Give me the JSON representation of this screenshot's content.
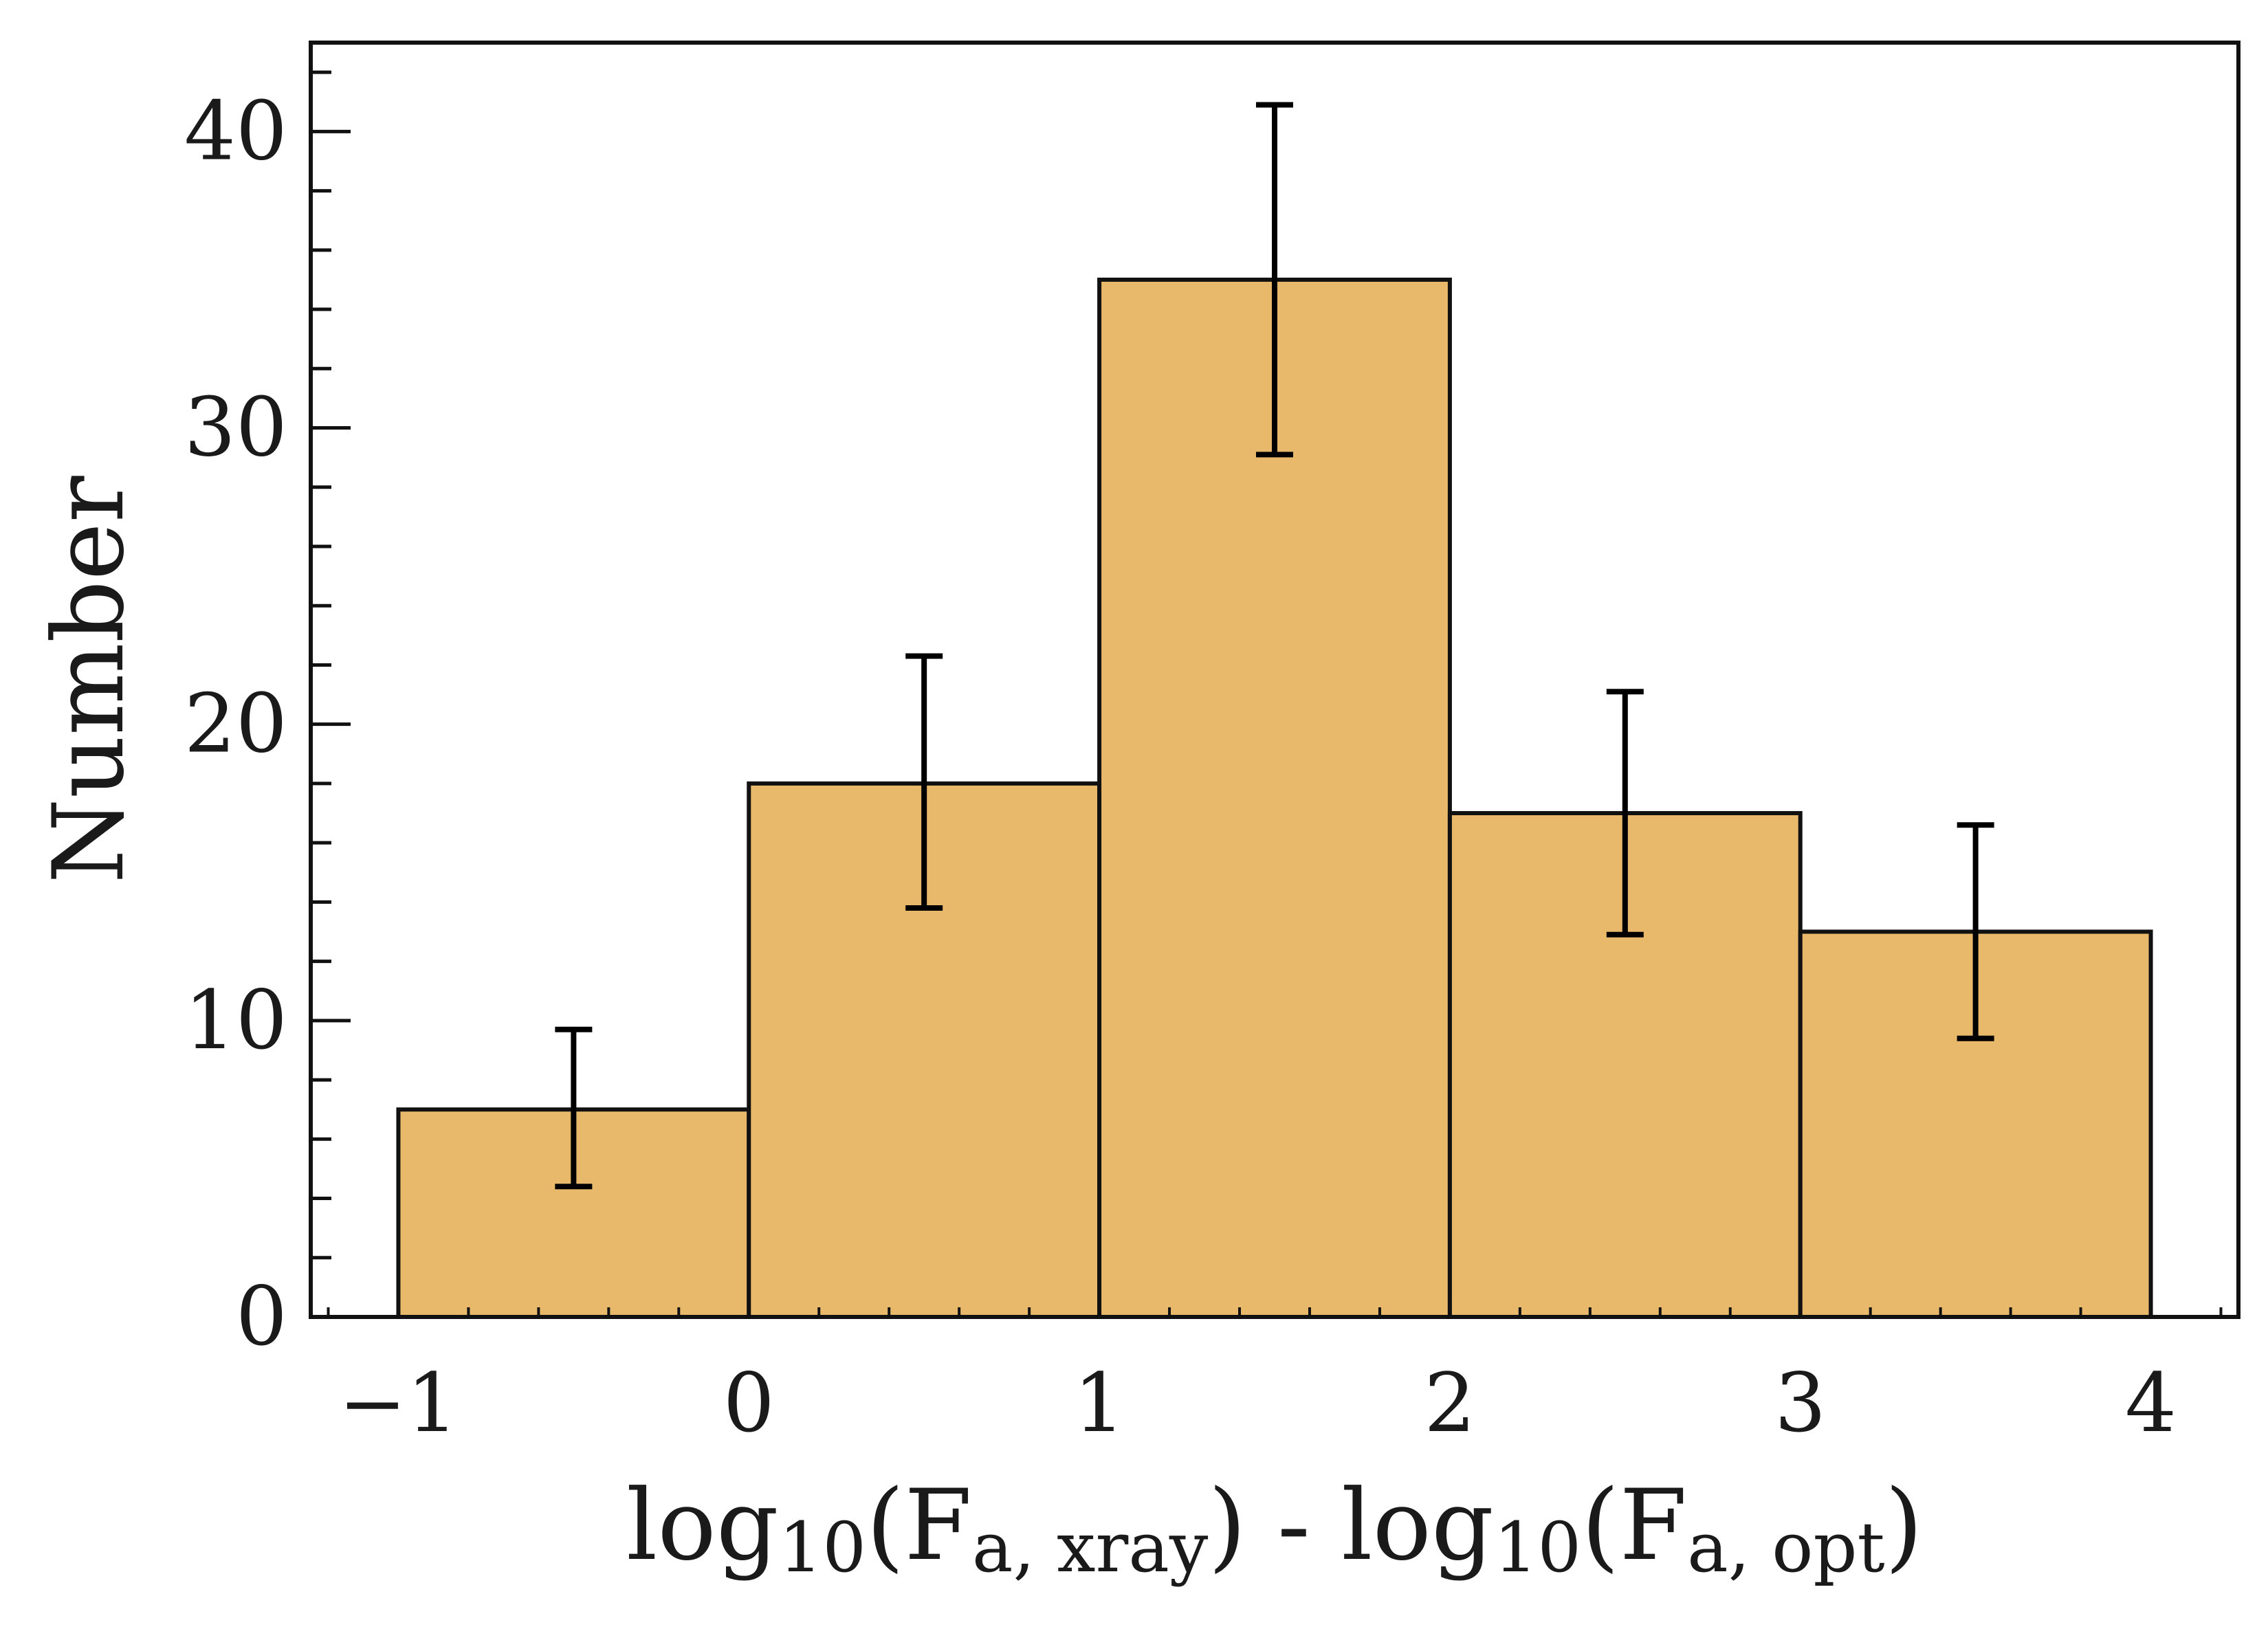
{
  "chart_data": {
    "type": "bar",
    "title": "",
    "xlabel": {
      "prefix": "log",
      "base": "10",
      "subscript1": "a, xray",
      "separator": " - ",
      "subscript2": "a, opt",
      "flux_symbol": "F"
    },
    "ylabel": "Number",
    "xlim": [
      -1.25,
      4.25
    ],
    "ylim": [
      0,
      43
    ],
    "bins": [
      {
        "left": -1,
        "right": 0,
        "value": 7,
        "err_low": 4.4,
        "err_high": 9.7
      },
      {
        "left": 0,
        "right": 1,
        "value": 18,
        "err_low": 13.8,
        "err_high": 22.3
      },
      {
        "left": 1,
        "right": 2,
        "value": 35,
        "err_low": 29.1,
        "err_high": 40.9
      },
      {
        "left": 2,
        "right": 3,
        "value": 17,
        "err_low": 12.9,
        "err_high": 21.1
      },
      {
        "left": 3,
        "right": 4,
        "value": 13,
        "err_low": 9.4,
        "err_high": 16.6
      }
    ],
    "x_ticks": [
      {
        "value": -1,
        "label": "−1"
      },
      {
        "value": 0,
        "label": "0"
      },
      {
        "value": 1,
        "label": "1"
      },
      {
        "value": 2,
        "label": "2"
      },
      {
        "value": 3,
        "label": "3"
      },
      {
        "value": 4,
        "label": "4"
      }
    ],
    "y_ticks": [
      {
        "value": 0,
        "label": "0"
      },
      {
        "value": 10,
        "label": "10"
      },
      {
        "value": 20,
        "label": "20"
      },
      {
        "value": 30,
        "label": "30"
      },
      {
        "value": 40,
        "label": "40"
      }
    ],
    "x_minor_step": 0.2,
    "y_minor_step": 2,
    "bar_color": "#e8b96b",
    "edge_color": "#111111",
    "error_color": "#000000",
    "grid": false,
    "legend": "none"
  }
}
